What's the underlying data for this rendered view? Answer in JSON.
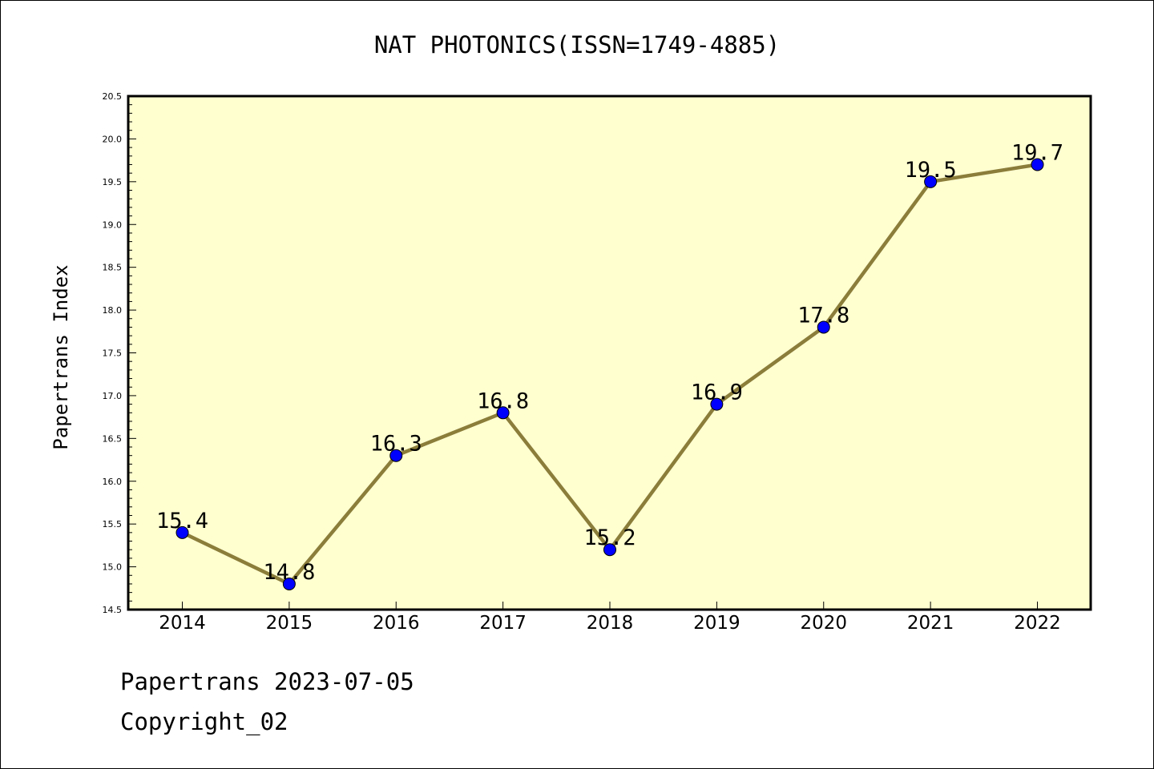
{
  "chart_data": {
    "type": "line",
    "title": "NAT PHOTONICS(ISSN=1749-4885)",
    "xlabel": "",
    "ylabel": "Papertrans Index",
    "categories": [
      "2014",
      "2015",
      "2016",
      "2017",
      "2018",
      "2019",
      "2020",
      "2021",
      "2022"
    ],
    "values": [
      15.4,
      14.8,
      16.3,
      16.8,
      15.2,
      16.9,
      17.8,
      19.5,
      19.7
    ],
    "data_labels": [
      "15.4",
      "14.8",
      "16.3",
      "16.8",
      "15.2",
      "16.9",
      "17.8",
      "19.5",
      "19.7"
    ],
    "ylim": [
      14.5,
      20.5
    ],
    "yticks": [
      "14.5",
      "15.0",
      "15.5",
      "16.0",
      "16.5",
      "17.0",
      "17.5",
      "18.0",
      "18.5",
      "19.0",
      "19.5",
      "20.0",
      "20.5"
    ],
    "grid": false,
    "legend": "none",
    "colors": {
      "plot_background": "#ffffd0",
      "line": "#8b7d3a",
      "marker": "#0000ff"
    }
  },
  "footer": {
    "line1": "Papertrans 2023-07-05",
    "line2": "Copyright_02"
  }
}
